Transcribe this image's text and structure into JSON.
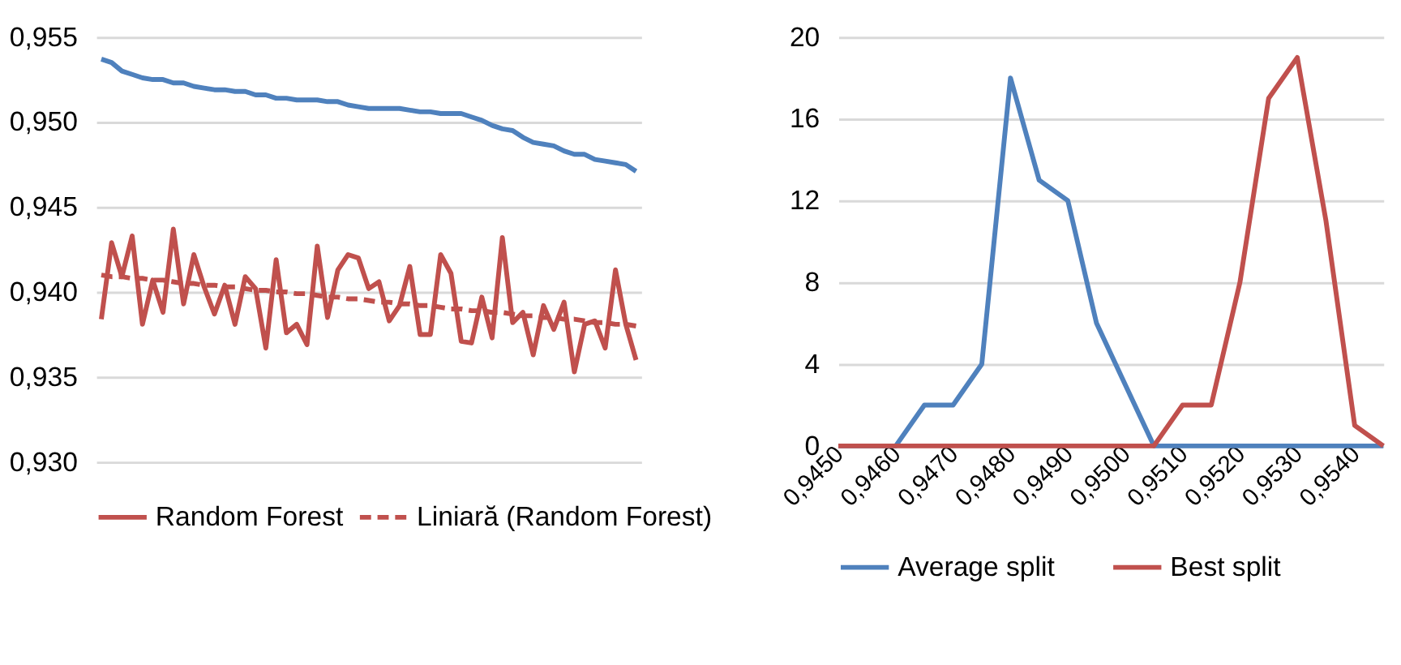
{
  "chart_data": [
    {
      "type": "line",
      "categories": [
        null,
        null,
        null,
        null,
        null,
        null,
        null,
        null,
        null,
        null,
        null,
        null,
        null,
        null,
        null,
        null,
        null,
        null,
        null,
        null,
        null,
        null,
        null,
        null,
        null,
        null,
        null,
        null,
        null,
        null,
        null,
        null,
        null,
        null,
        null,
        null,
        null,
        null,
        null,
        null,
        null,
        null,
        null,
        null,
        null,
        null,
        null,
        null,
        null,
        null,
        null,
        null,
        null
      ],
      "series": [
        {
          "color": "#4f81bd",
          "values": [
            0.9537,
            0.9535,
            0.953,
            0.9528,
            0.9526,
            0.9525,
            0.9525,
            0.9523,
            0.9523,
            0.9521,
            0.952,
            0.9519,
            0.9519,
            0.9518,
            0.9518,
            0.9516,
            0.9516,
            0.9514,
            0.9514,
            0.9513,
            0.9513,
            0.9513,
            0.9512,
            0.9512,
            0.951,
            0.9509,
            0.9508,
            0.9508,
            0.9508,
            0.9508,
            0.9507,
            0.9506,
            0.9506,
            0.9505,
            0.9505,
            0.9505,
            0.9503,
            0.9501,
            0.9498,
            0.9496,
            0.9495,
            0.9491,
            0.9488,
            0.9487,
            0.9486,
            0.9483,
            0.9481,
            0.9481,
            0.9478,
            0.9477,
            0.9476,
            0.9475,
            0.9471
          ]
        },
        {
          "name": "Random Forest",
          "color": "#c0504d",
          "values": [
            0.9384,
            0.9429,
            0.9409,
            0.9433,
            0.9381,
            0.9407,
            0.9388,
            0.9437,
            0.9393,
            0.9422,
            0.9403,
            0.9387,
            0.9404,
            0.9381,
            0.9409,
            0.9402,
            0.9367,
            0.9419,
            0.9376,
            0.9381,
            0.9369,
            0.9427,
            0.9385,
            0.9413,
            0.9422,
            0.942,
            0.9402,
            0.9406,
            0.9383,
            0.9392,
            0.9415,
            0.9375,
            0.9375,
            0.9422,
            0.9411,
            0.9371,
            0.937,
            0.9397,
            0.9373,
            0.9432,
            0.9382,
            0.9388,
            0.9363,
            0.9392,
            0.9378,
            0.9394,
            0.9353,
            0.9381,
            0.9383,
            0.9367,
            0.9413,
            0.9381,
            0.936
          ]
        },
        {
          "name": "Liniară (Random Forest)",
          "color": "#c0504d",
          "line_style": "dashed",
          "values": [
            0.941,
            0.9409,
            0.9409,
            0.9408,
            0.9408,
            0.9407,
            0.9407,
            0.9406,
            0.9405,
            0.9405,
            0.9404,
            0.9404,
            0.9403,
            0.9403,
            0.9402,
            0.9401,
            0.9401,
            0.94,
            0.94,
            0.9399,
            0.9399,
            0.9398,
            0.9397,
            0.9397,
            0.9396,
            0.9396,
            0.9395,
            0.9394,
            0.9394,
            0.9393,
            0.9393,
            0.9392,
            0.9392,
            0.9391,
            0.939,
            0.939,
            0.9389,
            0.9389,
            0.9388,
            0.9388,
            0.9387,
            0.9386,
            0.9386,
            0.9385,
            0.9385,
            0.9384,
            0.9384,
            0.9383,
            0.9382,
            0.9382,
            0.9381,
            0.9381,
            0.938
          ]
        }
      ],
      "ylim": [
        0.93,
        0.955
      ],
      "yticks": [
        {
          "value": 0.93,
          "label": "0,930"
        },
        {
          "value": 0.935,
          "label": "0,935"
        },
        {
          "value": 0.94,
          "label": "0,940"
        },
        {
          "value": 0.945,
          "label": "0,945"
        },
        {
          "value": 0.95,
          "label": "0,950"
        },
        {
          "value": 0.955,
          "label": "0,955"
        }
      ],
      "grid": "y",
      "legend": "bottom",
      "tick_labels": "y",
      "line_style": "solid",
      "marker": "none"
    },
    {
      "type": "line",
      "categories": [
        "0,9450",
        null,
        "0,9460",
        null,
        "0,9470",
        null,
        "0,9480",
        null,
        "0,9490",
        null,
        "0,9500",
        null,
        "0,9510",
        null,
        "0,9520",
        null,
        "0,9530",
        null,
        "0,9540",
        null
      ],
      "series": [
        {
          "name": "Average split",
          "color": "#4f81bd",
          "values": [
            0,
            0,
            0,
            2,
            2,
            4,
            18,
            13,
            12,
            6,
            3,
            0,
            0,
            0,
            0,
            0,
            0,
            0,
            0,
            0
          ]
        },
        {
          "name": "Best split",
          "color": "#c0504d",
          "values": [
            0,
            0,
            0,
            0,
            0,
            0,
            0,
            0,
            0,
            0,
            0,
            0,
            2,
            2,
            8,
            17,
            19,
            11,
            1,
            0
          ]
        }
      ],
      "ylim": [
        0,
        20
      ],
      "yticks": [
        0,
        4,
        8,
        12,
        16,
        20
      ],
      "grid": "y",
      "legend": "bottom",
      "line_style": "solid",
      "marker": "none"
    }
  ]
}
